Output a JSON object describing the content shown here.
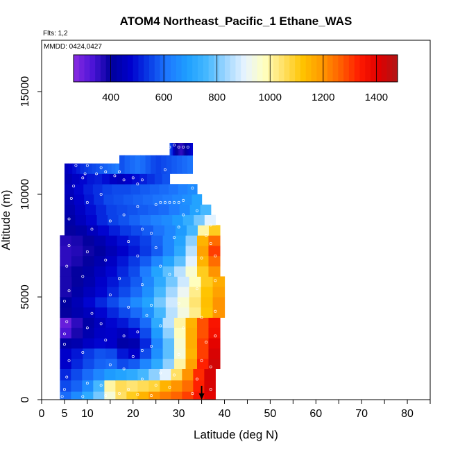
{
  "chart_data": {
    "type": "heatmap",
    "title": "ATOM4 Northeast_Pacific_1 Ethane_WAS",
    "flights_label": "Flts: 1,2",
    "dates_label": "MMDD: 0424,0427",
    "xlabel": "Latitude (deg N)",
    "ylabel": "Altitude (m)",
    "xlim": [
      0,
      85
    ],
    "ylim": [
      0,
      17500
    ],
    "x_ticks": [
      {
        "value": 0,
        "label": "0"
      },
      {
        "value": 5,
        "label": "5"
      },
      {
        "value": 10,
        "label": "10"
      },
      {
        "value": 20,
        "label": "20"
      },
      {
        "value": 30,
        "label": "30"
      },
      {
        "value": 40,
        "label": "40"
      },
      {
        "value": 50,
        "label": "50"
      },
      {
        "value": 60,
        "label": "60"
      },
      {
        "value": 70,
        "label": "70"
      },
      {
        "value": 80,
        "label": "80"
      }
    ],
    "x_minor_ticks": [
      15,
      25,
      35,
      45,
      55,
      65,
      75,
      85
    ],
    "y_ticks": [
      {
        "value": 0,
        "label": "0"
      },
      {
        "value": 5000,
        "label": "5000"
      },
      {
        "value": 10000,
        "label": "10000"
      },
      {
        "value": 15000,
        "label": "15000"
      }
    ],
    "colorbar": {
      "range": [
        260,
        1480
      ],
      "ticks": [
        {
          "value": 400,
          "label": "400"
        },
        {
          "value": 600,
          "label": "600"
        },
        {
          "value": 800,
          "label": "800"
        },
        {
          "value": 1000,
          "label": "1000"
        },
        {
          "value": 1200,
          "label": "1200"
        },
        {
          "value": 1400,
          "label": "1400"
        }
      ],
      "colors": [
        "#8a2be2",
        "#4b14d6",
        "#00009c",
        "#0000cd",
        "#0a3fe8",
        "#1e7bff",
        "#1ea0ff",
        "#46b8ff",
        "#9fd6ff",
        "#e8f4ff",
        "#ffffc0",
        "#ffe066",
        "#ffc400",
        "#ff9a00",
        "#ff6000",
        "#ff1a00",
        "#e00000",
        "#b01515"
      ]
    },
    "arrow_marker_lat": 35,
    "layers": [
      {
        "z0": 0,
        "z1": 400,
        "x0": 4,
        "x1": 38,
        "v": [
          600,
          650,
          720,
          800,
          950,
          1050,
          1100,
          1150,
          1200,
          1230,
          1260,
          1300,
          1350,
          1400
        ]
      },
      {
        "z0": 400,
        "z1": 950,
        "x0": 4,
        "x1": 38,
        "v": [
          560,
          590,
          650,
          760,
          1000,
          1060,
          1040,
          1060,
          1080,
          1150,
          1200,
          1250,
          1330,
          1420
        ]
      },
      {
        "z0": 950,
        "z1": 1500,
        "x0": 4,
        "x1": 38,
        "v": [
          520,
          560,
          600,
          640,
          680,
          700,
          720,
          760,
          820,
          900,
          1050,
          1200,
          1320,
          1420
        ]
      },
      {
        "z0": 1500,
        "z1": 2000,
        "x0": 4,
        "x1": 39,
        "v": [
          470,
          520,
          560,
          590,
          600,
          560,
          580,
          640,
          720,
          820,
          1000,
          1180,
          1330,
          1430
        ]
      },
      {
        "z0": 2000,
        "z1": 2500,
        "x0": 4,
        "x1": 39,
        "v": [
          470,
          500,
          540,
          570,
          560,
          500,
          470,
          560,
          660,
          780,
          950,
          1150,
          1300,
          1420
        ]
      },
      {
        "z0": 2500,
        "z1": 3000,
        "x0": 4,
        "x1": 39,
        "v": [
          420,
          430,
          460,
          480,
          470,
          420,
          430,
          520,
          640,
          780,
          960,
          1160,
          1300,
          1400
        ]
      },
      {
        "z0": 3000,
        "z1": 3500,
        "x0": 4,
        "x1": 39,
        "v": [
          330,
          380,
          430,
          460,
          470,
          450,
          480,
          560,
          680,
          820,
          980,
          1160,
          1280,
          1360
        ]
      },
      {
        "z0": 3500,
        "z1": 4000,
        "x0": 4,
        "x1": 39,
        "v": [
          300,
          360,
          420,
          450,
          480,
          500,
          540,
          600,
          720,
          860,
          1000,
          1150,
          1280,
          1350
        ]
      },
      {
        "z0": 4000,
        "z1": 4500,
        "x0": 4,
        "x1": 40,
        "v": [
          400,
          430,
          450,
          480,
          520,
          560,
          600,
          660,
          760,
          860,
          940,
          1020,
          1120,
          1200
        ]
      },
      {
        "z0": 4500,
        "z1": 5000,
        "x0": 4,
        "x1": 40,
        "v": [
          410,
          440,
          480,
          520,
          560,
          600,
          650,
          700,
          800,
          880,
          960,
          1040,
          1130,
          1200
        ]
      },
      {
        "z0": 5000,
        "z1": 5500,
        "x0": 4,
        "x1": 40,
        "v": [
          380,
          420,
          450,
          480,
          520,
          560,
          600,
          660,
          760,
          840,
          920,
          1020,
          1120,
          1180
        ]
      },
      {
        "z0": 5500,
        "z1": 6000,
        "x0": 4,
        "x1": 40,
        "v": [
          380,
          400,
          430,
          470,
          500,
          540,
          580,
          640,
          720,
          800,
          880,
          980,
          1100,
          1160
        ]
      },
      {
        "z0": 6000,
        "z1": 6500,
        "x0": 4,
        "x1": 39,
        "v": [
          380,
          400,
          420,
          450,
          480,
          520,
          560,
          620,
          700,
          780,
          860,
          960,
          1100,
          1200
        ]
      },
      {
        "z0": 6500,
        "z1": 7000,
        "x0": 4,
        "x1": 39,
        "v": [
          360,
          380,
          400,
          430,
          460,
          500,
          540,
          580,
          640,
          700,
          780,
          900,
          1150,
          1250
        ]
      },
      {
        "z0": 7000,
        "z1": 7500,
        "x0": 4,
        "x1": 39,
        "v": [
          360,
          370,
          390,
          410,
          440,
          470,
          500,
          540,
          580,
          640,
          720,
          860,
          1180,
          1300
        ]
      },
      {
        "z0": 7500,
        "z1": 8000,
        "x0": 4,
        "x1": 39,
        "v": [
          370,
          380,
          400,
          430,
          460,
          490,
          520,
          550,
          590,
          640,
          700,
          820,
          1150,
          1250
        ]
      },
      {
        "z0": 8000,
        "z1": 8500,
        "x0": 5,
        "x1": 39,
        "v": [
          400,
          420,
          450,
          480,
          510,
          540,
          560,
          580,
          610,
          640,
          680,
          760,
          1000,
          1100
        ]
      },
      {
        "z0": 8500,
        "z1": 9000,
        "x0": 5,
        "x1": 38,
        "v": [
          420,
          450,
          480,
          520,
          550,
          570,
          590,
          610,
          630,
          650,
          680,
          730,
          800,
          900
        ]
      },
      {
        "z0": 9000,
        "z1": 9500,
        "x0": 5,
        "x1": 37,
        "v": [
          430,
          460,
          490,
          520,
          550,
          560,
          570,
          580,
          590,
          600,
          620,
          650,
          700,
          760
        ]
      },
      {
        "z0": 9500,
        "z1": 10000,
        "x0": 5,
        "x1": 35,
        "v": [
          440,
          470,
          500,
          530,
          560,
          570,
          580,
          590,
          600,
          610,
          620,
          640,
          660,
          700
        ]
      },
      {
        "z0": 10000,
        "z1": 10500,
        "x0": 5,
        "x1": 34,
        "v": [
          450,
          480,
          510,
          530,
          550,
          560,
          560,
          570,
          580,
          590,
          600,
          610,
          630,
          650
        ]
      },
      {
        "z0": 10500,
        "z1": 11000,
        "x0": 5,
        "x1": 28,
        "v": [
          440,
          460,
          480,
          500,
          510,
          490,
          460,
          450,
          470,
          490,
          510,
          530,
          550,
          570
        ]
      },
      {
        "z0": 11000,
        "z1": 11500,
        "x0": 5,
        "x1": 17,
        "v": [
          450,
          470,
          490,
          510,
          530,
          540,
          550,
          560,
          570,
          580,
          590,
          600,
          610,
          620
        ]
      },
      {
        "z0": 11000,
        "z1": 11900,
        "x0": 17,
        "x1": 33,
        "v": [
          570,
          590,
          600,
          610,
          600,
          580,
          560,
          550,
          560,
          570,
          580,
          590,
          600,
          610
        ]
      },
      {
        "z0": 11900,
        "z1": 12500,
        "x0": 28,
        "x1": 33,
        "v": [
          560,
          520,
          460,
          420,
          400,
          380,
          360,
          360,
          380,
          400,
          420,
          440,
          460,
          480
        ]
      }
    ],
    "points": [
      [
        4.5,
        150
      ],
      [
        5,
        500
      ],
      [
        5.5,
        1100
      ],
      [
        6,
        1900
      ],
      [
        5,
        2700
      ],
      [
        5,
        3200
      ],
      [
        5.5,
        3800
      ],
      [
        5,
        4800
      ],
      [
        6,
        5300
      ],
      [
        5.5,
        6500
      ],
      [
        6,
        7500
      ],
      [
        6,
        8800
      ],
      [
        6.5,
        9800
      ],
      [
        7,
        10400
      ],
      [
        7.5,
        11400
      ],
      [
        9,
        150
      ],
      [
        10,
        800
      ],
      [
        9,
        2300
      ],
      [
        10,
        3500
      ],
      [
        11,
        4200
      ],
      [
        9,
        6000
      ],
      [
        10,
        7200
      ],
      [
        11,
        8300
      ],
      [
        10,
        9600
      ],
      [
        9,
        10800
      ],
      [
        9.5,
        11000
      ],
      [
        10,
        11400
      ],
      [
        14,
        200
      ],
      [
        13,
        700
      ],
      [
        15,
        1700
      ],
      [
        14,
        2900
      ],
      [
        13,
        3700
      ],
      [
        15,
        5100
      ],
      [
        14,
        6800
      ],
      [
        15,
        8700
      ],
      [
        13,
        10000
      ],
      [
        12,
        11000
      ],
      [
        14,
        11100
      ],
      [
        13,
        11300
      ],
      [
        17,
        300
      ],
      [
        19,
        500
      ],
      [
        18,
        1500
      ],
      [
        20,
        2100
      ],
      [
        18,
        3100
      ],
      [
        19,
        4500
      ],
      [
        17,
        5900
      ],
      [
        19,
        7700
      ],
      [
        18,
        9000
      ],
      [
        16,
        10900
      ],
      [
        17,
        11100
      ],
      [
        18,
        10700
      ],
      [
        21,
        250
      ],
      [
        22,
        1000
      ],
      [
        22,
        2400
      ],
      [
        21,
        3300
      ],
      [
        23,
        4100
      ],
      [
        22,
        5600
      ],
      [
        21,
        7000
      ],
      [
        22,
        8300
      ],
      [
        21,
        9400
      ],
      [
        20,
        10800
      ],
      [
        22,
        10700
      ],
      [
        21,
        10500
      ],
      [
        24,
        200
      ],
      [
        25,
        700
      ],
      [
        26,
        1300
      ],
      [
        24,
        2600
      ],
      [
        26,
        3600
      ],
      [
        24,
        4600
      ],
      [
        26,
        6500
      ],
      [
        25,
        7400
      ],
      [
        24,
        8100
      ],
      [
        25,
        9500
      ],
      [
        26,
        9600
      ],
      [
        27,
        9600
      ],
      [
        28,
        9600
      ],
      [
        29,
        9600
      ],
      [
        30,
        9600
      ],
      [
        31,
        9700
      ],
      [
        28,
        600
      ],
      [
        29,
        1200
      ],
      [
        30,
        2200
      ],
      [
        31,
        3500
      ],
      [
        30,
        4700
      ],
      [
        28,
        6100
      ],
      [
        29,
        7900
      ],
      [
        30,
        8400
      ],
      [
        31,
        9000
      ],
      [
        27,
        12200
      ],
      [
        28,
        12300
      ],
      [
        29,
        12400
      ],
      [
        30,
        12300
      ],
      [
        31,
        12300
      ],
      [
        32,
        12300
      ],
      [
        27,
        11200
      ],
      [
        33,
        300
      ],
      [
        34,
        1000
      ],
      [
        35,
        1900
      ],
      [
        36,
        2800
      ],
      [
        35,
        4000
      ],
      [
        34,
        5400
      ],
      [
        35,
        6900
      ],
      [
        36,
        8000
      ],
      [
        34,
        9200
      ],
      [
        33,
        10300
      ],
      [
        37,
        500
      ],
      [
        37,
        1600
      ],
      [
        38,
        3100
      ],
      [
        38,
        4300
      ],
      [
        38,
        5800
      ],
      [
        38,
        7000
      ],
      [
        37,
        7600
      ],
      [
        37,
        8500
      ]
    ]
  }
}
